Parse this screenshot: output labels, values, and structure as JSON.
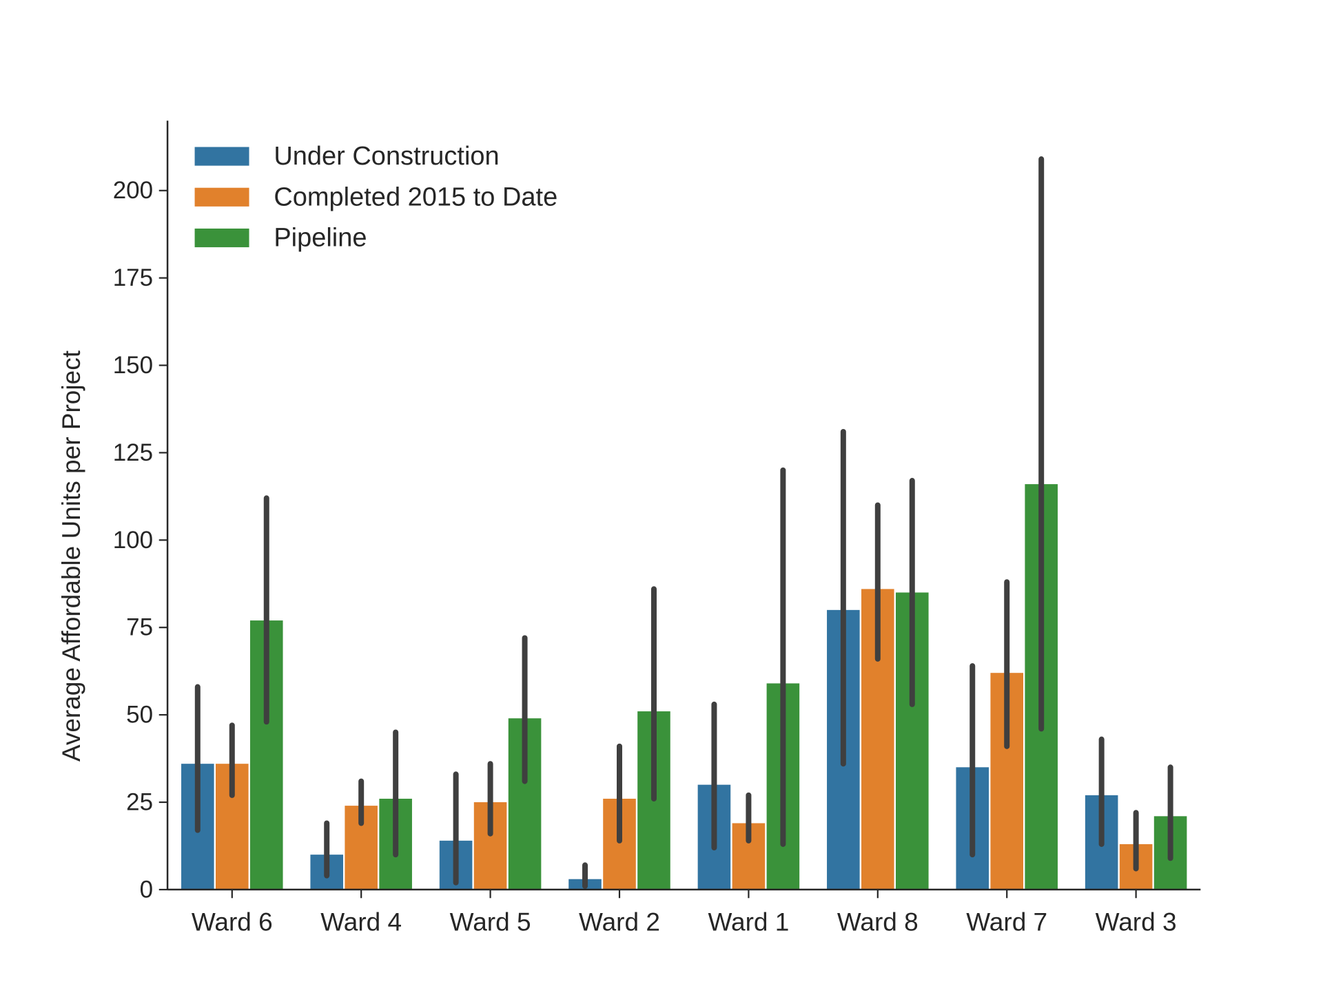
{
  "chart_data": {
    "type": "bar",
    "title": "",
    "xlabel": "",
    "ylabel": "Average Affordable Units per Project",
    "ylim": [
      0,
      220
    ],
    "yticks": [
      0,
      25,
      50,
      75,
      100,
      125,
      150,
      175,
      200
    ],
    "grid": false,
    "legend_position": "top-left",
    "categories": [
      "Ward 6",
      "Ward 4",
      "Ward 5",
      "Ward 2",
      "Ward 1",
      "Ward 8",
      "Ward 7",
      "Ward 3"
    ],
    "series": [
      {
        "name": "Under Construction",
        "color": "#3274a1",
        "values": [
          36,
          10,
          14,
          3,
          30,
          80,
          35,
          27
        ],
        "ci_low": [
          17,
          4,
          2,
          1,
          12,
          36,
          10,
          13
        ],
        "ci_high": [
          58,
          19,
          33,
          7,
          53,
          131,
          64,
          43
        ]
      },
      {
        "name": "Completed 2015 to Date",
        "color": "#e1812c",
        "values": [
          36,
          24,
          25,
          26,
          19,
          86,
          62,
          13
        ],
        "ci_low": [
          27,
          19,
          16,
          14,
          14,
          66,
          41,
          6
        ],
        "ci_high": [
          47,
          31,
          36,
          41,
          27,
          110,
          88,
          22
        ]
      },
      {
        "name": "Pipeline",
        "color": "#3a923a",
        "values": [
          77,
          26,
          49,
          51,
          59,
          85,
          116,
          21
        ],
        "ci_low": [
          48,
          10,
          31,
          26,
          13,
          53,
          46,
          9
        ],
        "ci_high": [
          112,
          45,
          72,
          86,
          120,
          117,
          209,
          35
        ]
      }
    ]
  }
}
